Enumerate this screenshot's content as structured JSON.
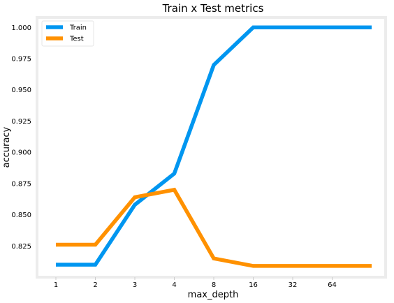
{
  "chart_data": {
    "type": "line",
    "title": "Train x Test metrics",
    "xlabel": "max_depth",
    "ylabel": "accuracy",
    "categories": [
      "1",
      "2",
      "3",
      "4",
      "8",
      "16",
      "32",
      "64",
      ""
    ],
    "ylim": [
      0.8,
      1.008
    ],
    "yticks": [
      "0.825",
      "0.850",
      "0.875",
      "0.900",
      "0.925",
      "0.950",
      "0.975",
      "1.000"
    ],
    "grid": false,
    "legend_position": "top-left",
    "series": [
      {
        "name": "Train",
        "color": "#0096f0",
        "values": [
          0.81,
          0.81,
          0.858,
          0.883,
          0.97,
          1.0,
          1.0,
          1.0,
          1.0
        ]
      },
      {
        "name": "Test",
        "color": "#ff9100",
        "values": [
          0.826,
          0.826,
          0.864,
          0.87,
          0.815,
          0.809,
          0.809,
          0.809,
          0.809
        ]
      }
    ]
  }
}
